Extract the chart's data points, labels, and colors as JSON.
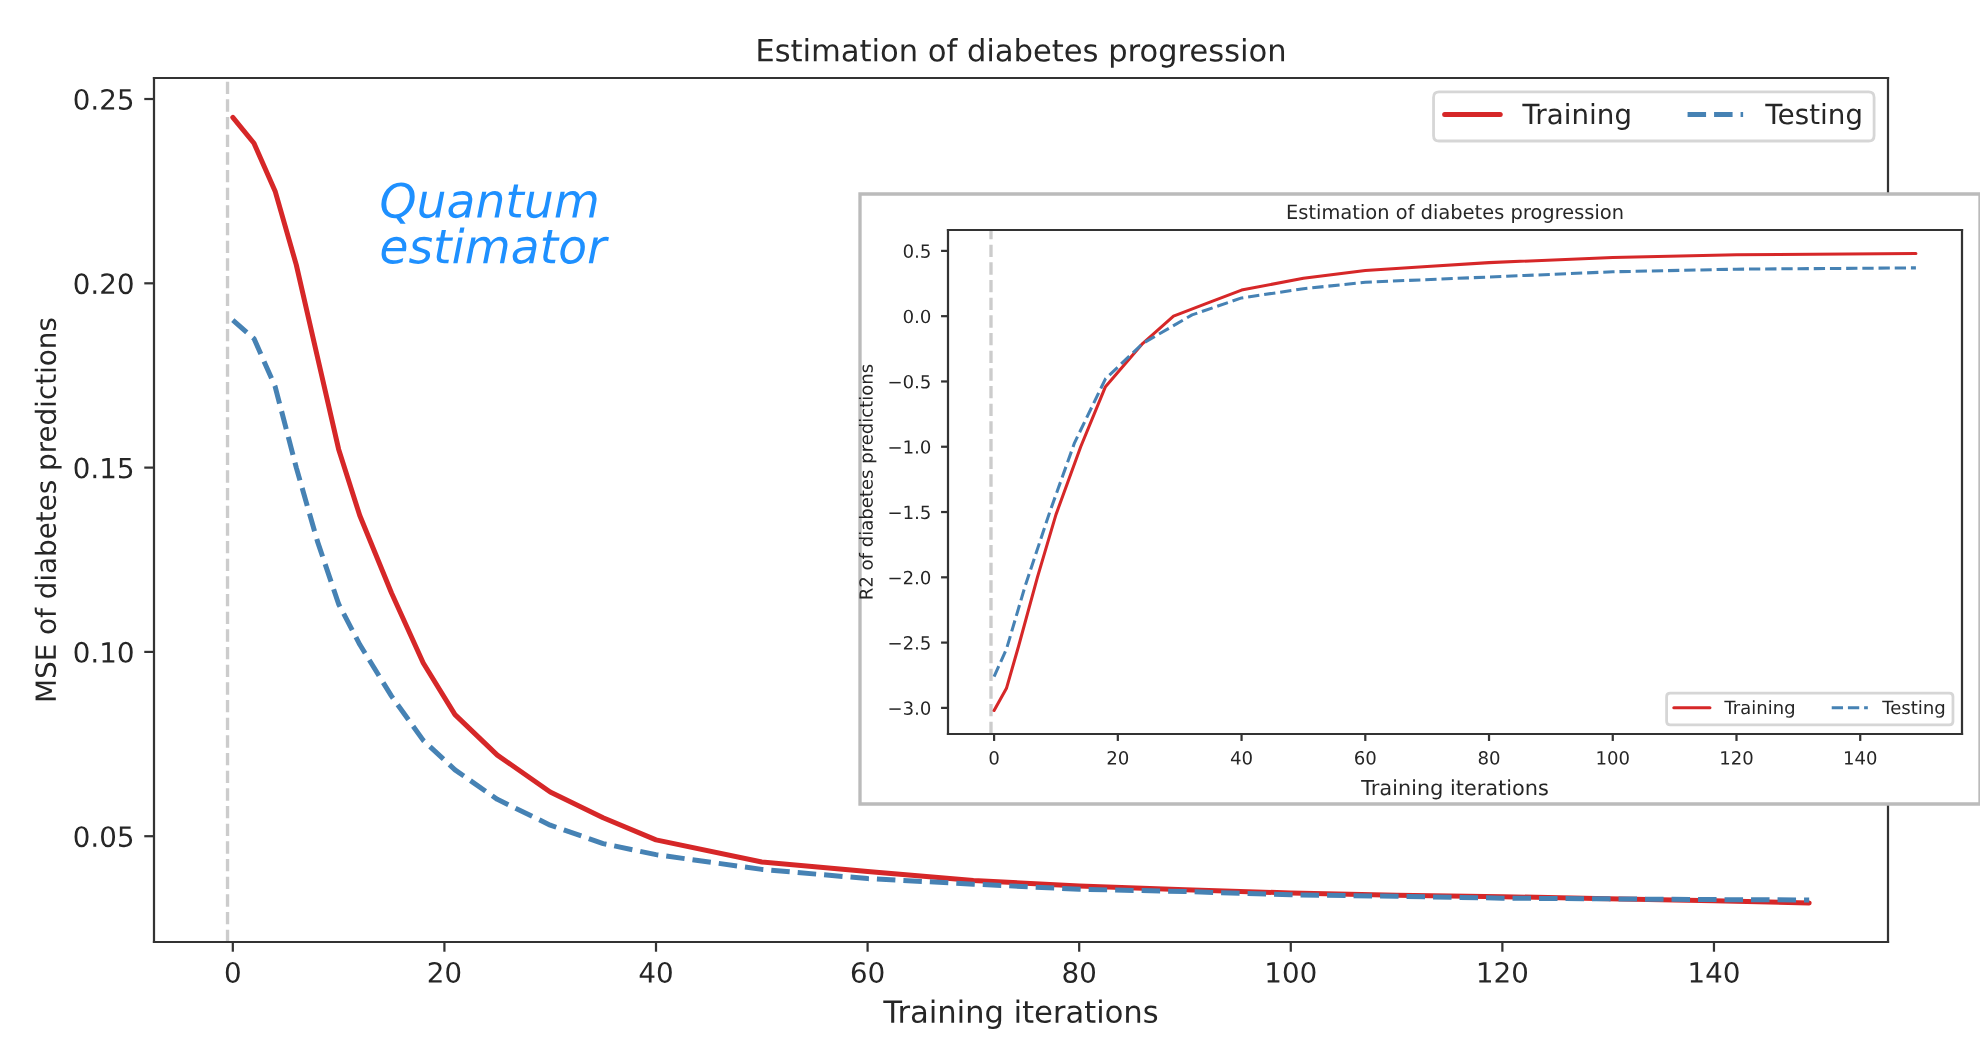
{
  "chart_data": [
    {
      "type": "line",
      "title": "Estimation of diabetes progression",
      "xlabel": "Training iterations",
      "ylabel": "MSE of diabetes predictions",
      "annotations": [
        "Quantum estimator"
      ],
      "xlim": [
        -7.45,
        156.45
      ],
      "ylim": [
        0.0213,
        0.2557
      ],
      "xticks": [
        0,
        20,
        40,
        60,
        80,
        100,
        120,
        140
      ],
      "yticks": [
        {
          "value": 0.05,
          "label": "0.05"
        },
        {
          "value": 0.1,
          "label": "0.10"
        },
        {
          "value": 0.15,
          "label": "0.15"
        },
        {
          "value": 0.2,
          "label": "0.20"
        },
        {
          "value": 0.25,
          "label": "0.25"
        }
      ],
      "grid": false,
      "legend": "top right",
      "marker": "none",
      "ref_lines": [
        {
          "axis": "x",
          "value": -0.5,
          "color": "#cccccc",
          "line_style": "dashed"
        }
      ],
      "series": [
        {
          "name": "Training",
          "color": "#d62728",
          "line_style": "solid",
          "x": [
            0,
            2,
            4,
            6,
            8,
            10,
            12,
            15,
            18,
            21,
            25,
            30,
            35,
            40,
            50,
            60,
            70,
            80,
            90,
            100,
            110,
            120,
            130,
            140,
            149
          ],
          "values": [
            0.245,
            0.238,
            0.225,
            0.205,
            0.18,
            0.155,
            0.137,
            0.116,
            0.097,
            0.083,
            0.072,
            0.062,
            0.055,
            0.049,
            0.043,
            0.0404,
            0.038,
            0.0365,
            0.0355,
            0.0346,
            0.034,
            0.0336,
            0.033,
            0.0325,
            0.0319
          ]
        },
        {
          "name": "Testing",
          "color": "#4682b4",
          "line_style": "dashed",
          "x": [
            0,
            2,
            4,
            6,
            8,
            10,
            12,
            15,
            18,
            21,
            25,
            30,
            35,
            40,
            50,
            60,
            70,
            80,
            90,
            100,
            110,
            120,
            130,
            140,
            149
          ],
          "values": [
            0.19,
            0.185,
            0.172,
            0.15,
            0.13,
            0.113,
            0.102,
            0.088,
            0.076,
            0.068,
            0.06,
            0.053,
            0.048,
            0.045,
            0.041,
            0.0385,
            0.037,
            0.0356,
            0.035,
            0.0341,
            0.0337,
            0.0332,
            0.033,
            0.0328,
            0.0327
          ]
        }
      ]
    },
    {
      "type": "line",
      "title": "Estimation of diabetes progression",
      "xlabel": "Training iterations",
      "ylabel": "R2 of diabetes predictions",
      "xlim": [
        -7.45,
        156.45
      ],
      "ylim": [
        -3.2,
        0.66
      ],
      "xticks": [
        0,
        20,
        40,
        60,
        80,
        100,
        120,
        140
      ],
      "yticks": [
        {
          "value": -3.0,
          "label": "−3.0"
        },
        {
          "value": -2.5,
          "label": "−2.5"
        },
        {
          "value": -2.0,
          "label": "−2.0"
        },
        {
          "value": -1.5,
          "label": "−1.5"
        },
        {
          "value": -1.0,
          "label": "−1.0"
        },
        {
          "value": -0.5,
          "label": "−0.5"
        },
        {
          "value": 0.0,
          "label": "0.0"
        },
        {
          "value": 0.5,
          "label": "0.5"
        }
      ],
      "grid": false,
      "legend": "bottom right",
      "marker": "none",
      "ref_lines": [
        {
          "axis": "x",
          "value": -0.5,
          "color": "#cccccc",
          "line_style": "dashed"
        }
      ],
      "series": [
        {
          "name": "Training",
          "color": "#d62728",
          "line_style": "solid",
          "x": [
            0,
            2,
            4,
            7,
            10,
            14,
            18,
            24,
            29,
            35,
            40,
            50,
            60,
            70,
            80,
            100,
            120,
            149
          ],
          "values": [
            -3.02,
            -2.85,
            -2.52,
            -2.0,
            -1.52,
            -1.0,
            -0.54,
            -0.21,
            0.0,
            0.11,
            0.2,
            0.29,
            0.35,
            0.38,
            0.41,
            0.45,
            0.47,
            0.48
          ]
        },
        {
          "name": "Testing",
          "color": "#4682b4",
          "line_style": "dashed",
          "x": [
            0,
            2,
            5,
            9,
            13,
            18,
            24,
            32,
            40,
            50,
            60,
            80,
            100,
            120,
            149
          ],
          "values": [
            -2.76,
            -2.55,
            -2.07,
            -1.5,
            -0.97,
            -0.48,
            -0.21,
            0.01,
            0.14,
            0.21,
            0.26,
            0.3,
            0.34,
            0.36,
            0.37
          ]
        }
      ]
    }
  ]
}
